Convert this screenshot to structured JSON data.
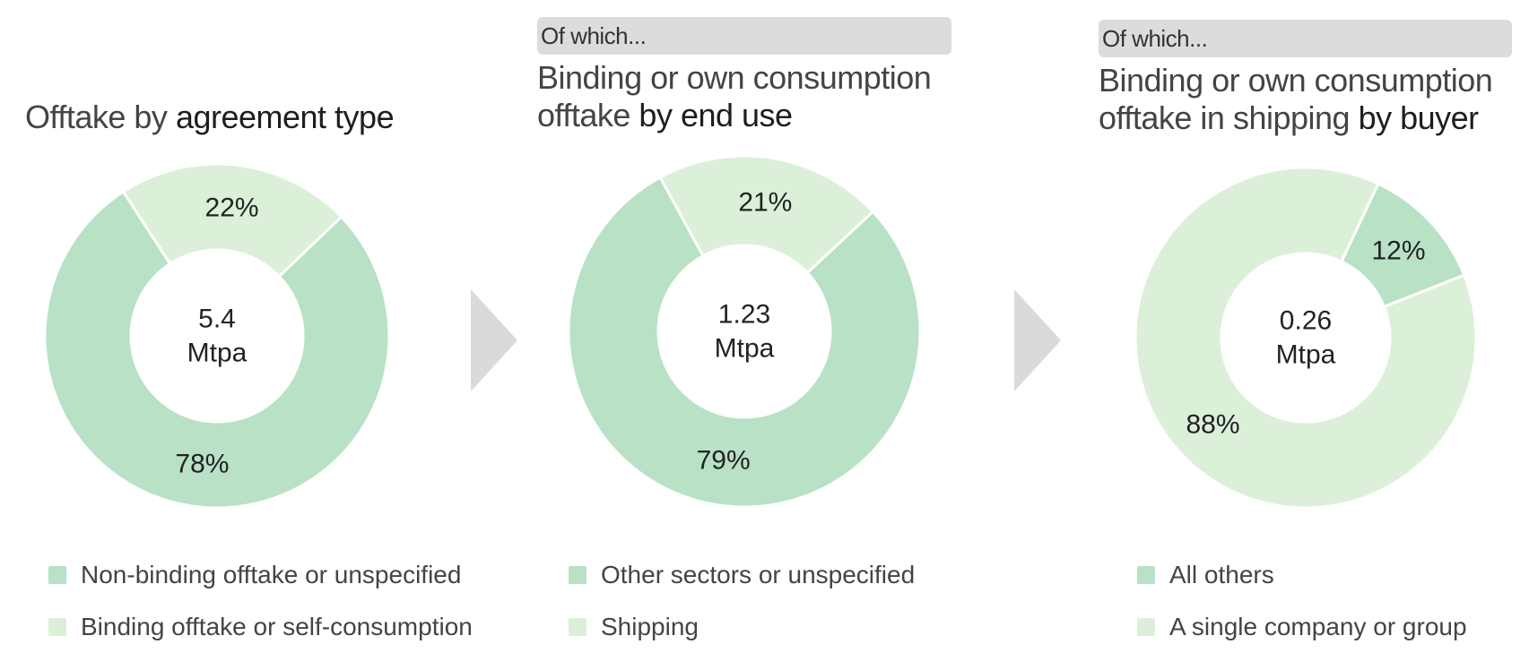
{
  "colors": {
    "primary": "#b8e1c6",
    "secondary": "#dcf0d9",
    "header_bg": "#dcdcdc",
    "arrow": "#dadada"
  },
  "panels": [
    {
      "title_plain": "Offtake by ",
      "title_strong": "agreement type",
      "legend": [
        "Non-binding offtake or unspecified",
        "Binding offtake or self-consumption"
      ]
    },
    {
      "ofwhich": "Of which...",
      "title_line1": "Binding or own consumption",
      "title_line2_plain": "offtake ",
      "title_line2_strong": "by end use",
      "legend": [
        "Other sectors or unspecified",
        "Shipping"
      ]
    },
    {
      "ofwhich": "Of which...",
      "title_line1": "Binding or own consumption",
      "title_line2_plain": "offtake in shipping ",
      "title_line2_strong": "by buyer",
      "legend": [
        "All others",
        "A single company or group"
      ]
    }
  ],
  "chart_data": [
    {
      "type": "pie",
      "center_value": "5.4",
      "center_unit": "Mtpa",
      "slices": [
        {
          "name": "Non-binding offtake or unspecified",
          "value": 78,
          "label": "78%",
          "color": "#b8e1c6"
        },
        {
          "name": "Binding offtake or self-consumption",
          "value": 22,
          "label": "22%",
          "color": "#dcf0d9"
        }
      ]
    },
    {
      "type": "pie",
      "center_value": "1.23",
      "center_unit": "Mtpa",
      "slices": [
        {
          "name": "Other sectors or unspecified",
          "value": 79,
          "label": "79%",
          "color": "#b8e1c6"
        },
        {
          "name": "Shipping",
          "value": 21,
          "label": "21%",
          "color": "#dcf0d9"
        }
      ]
    },
    {
      "type": "pie",
      "center_value": "0.26",
      "center_unit": "Mtpa",
      "slices": [
        {
          "name": "A single company or group",
          "value": 88,
          "label": "88%",
          "color": "#dcf0d9"
        },
        {
          "name": "All others",
          "value": 12,
          "label": "12%",
          "color": "#b8e1c6"
        }
      ]
    }
  ]
}
